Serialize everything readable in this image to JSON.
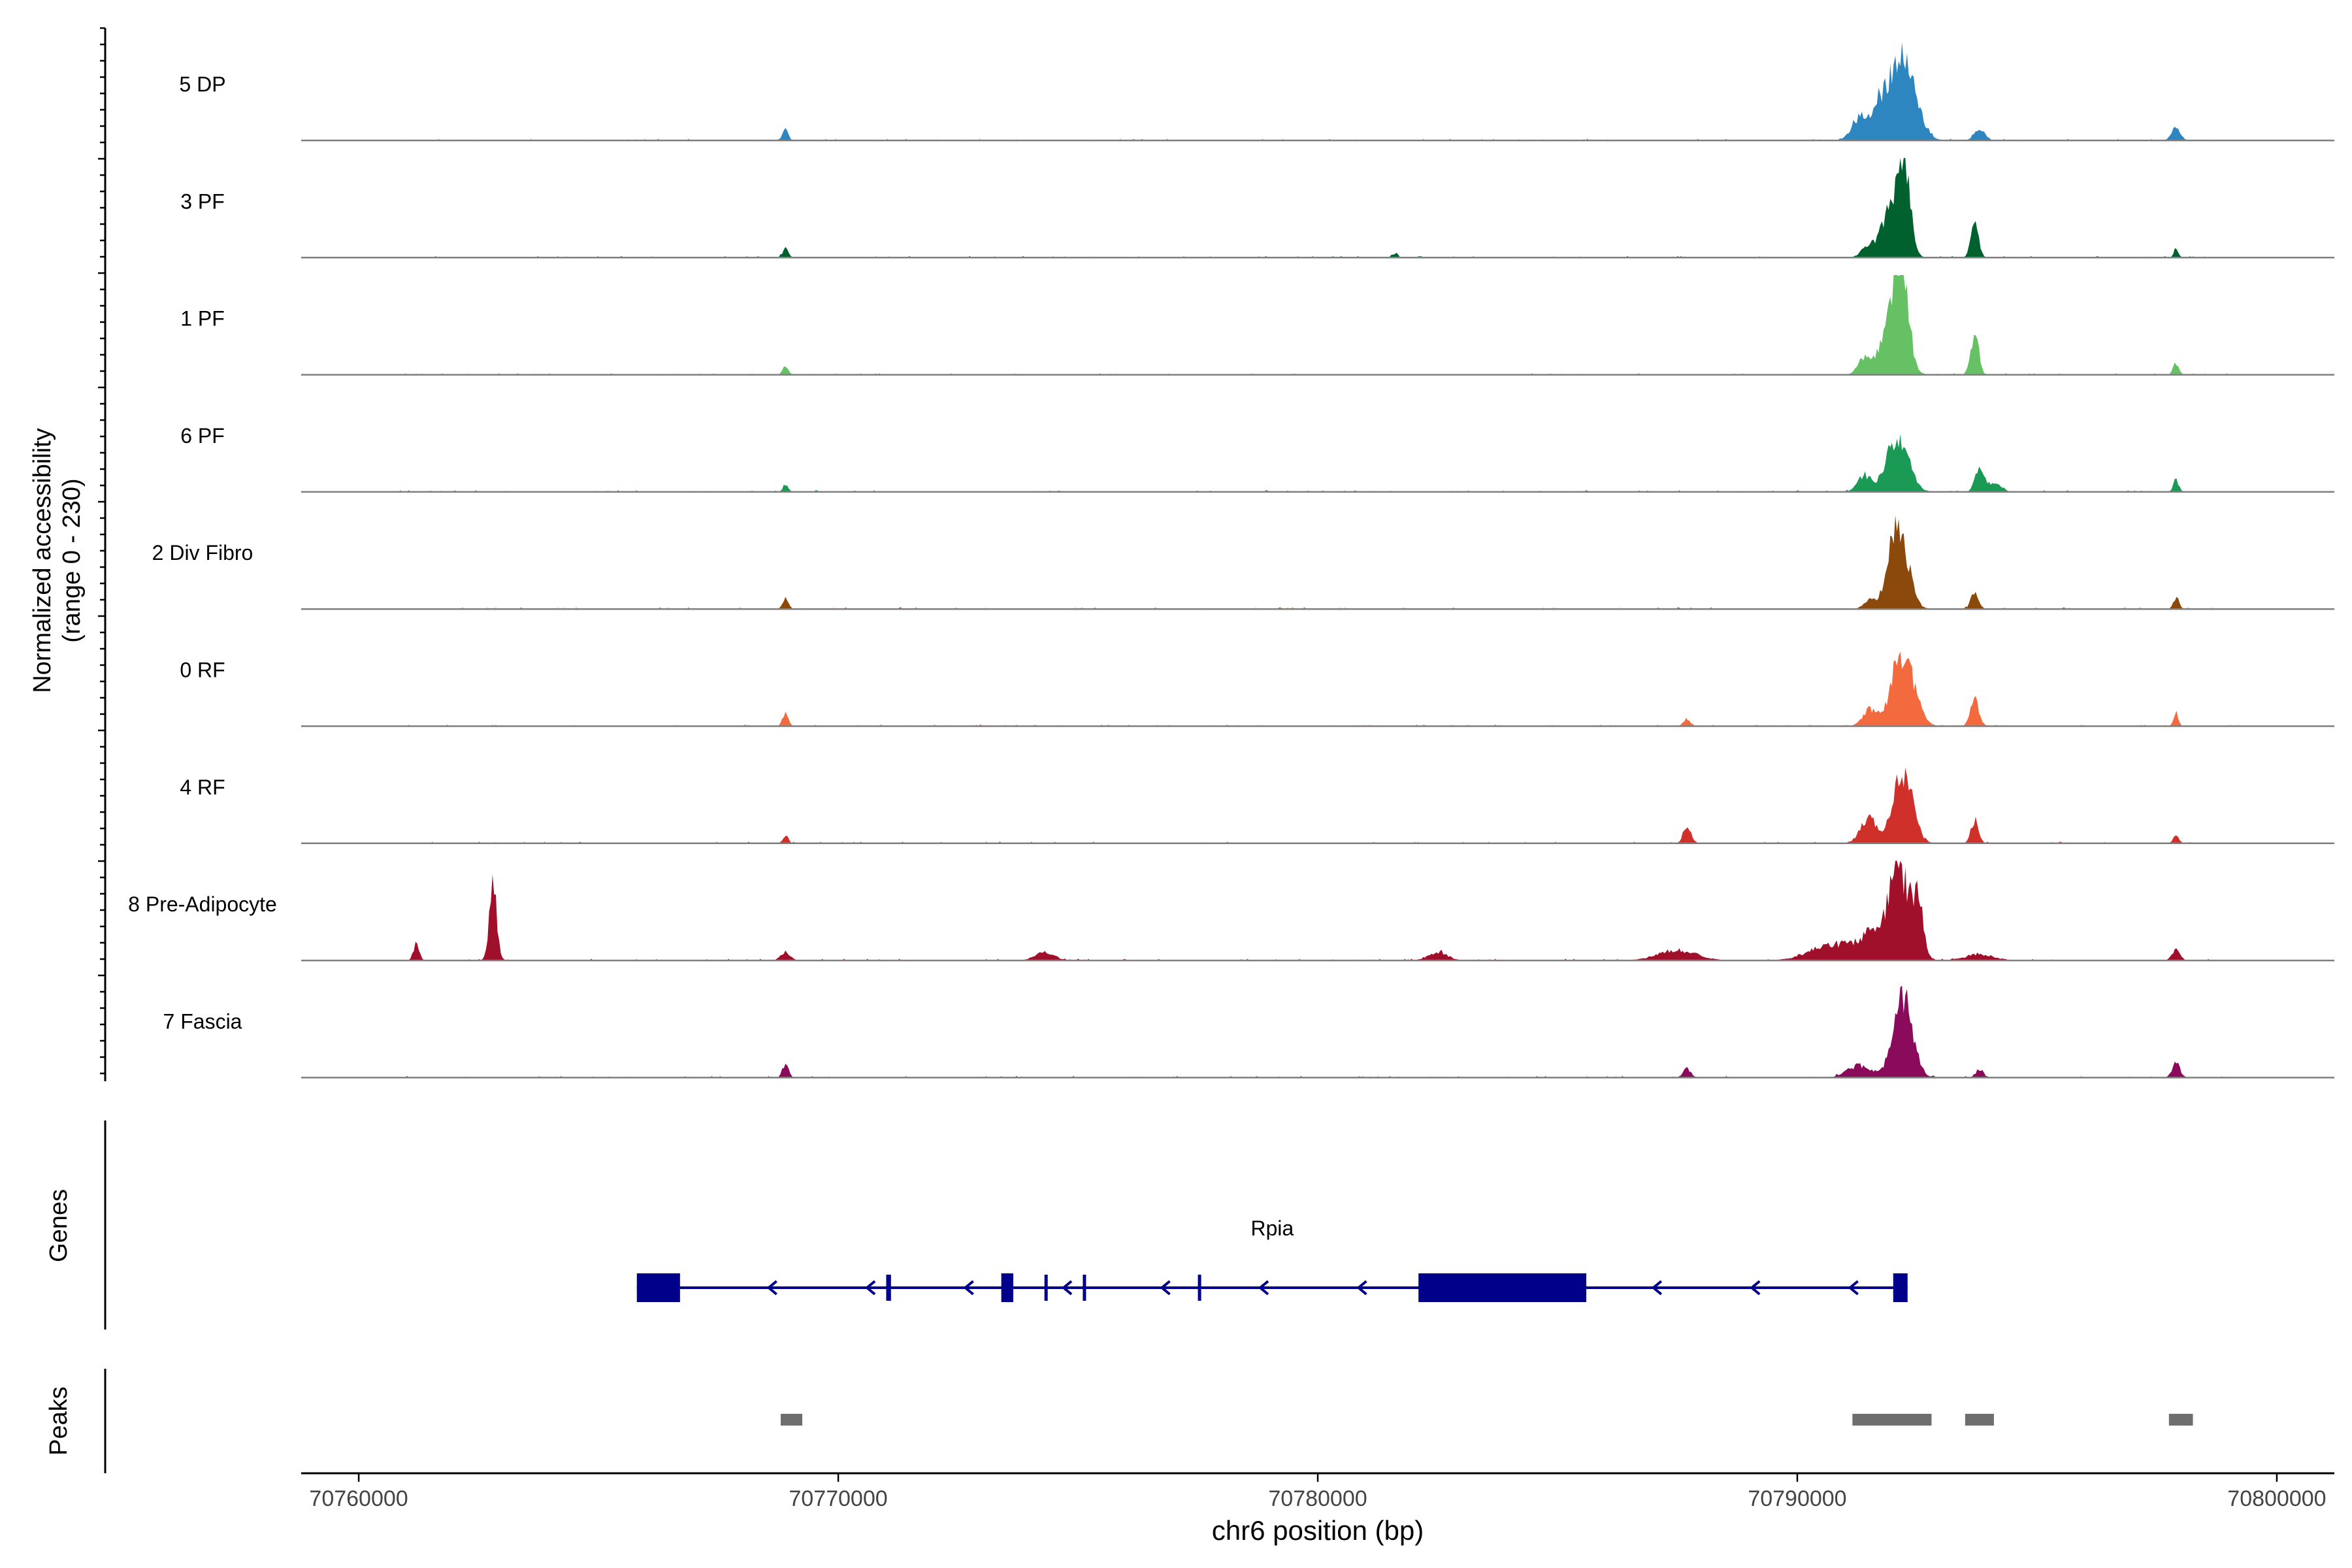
{
  "chart_data": {
    "type": "area",
    "chromosome": "chr6",
    "xlabel": "chr6 position (bp)",
    "xlim": [
      70758800,
      70801200
    ],
    "x_ticks": [
      70760000,
      70770000,
      70780000,
      70790000,
      70800000
    ],
    "x_tick_labels": [
      "70760000",
      "70770000",
      "70780000",
      "70790000",
      "70800000"
    ],
    "ylabel_line1": "Normalized accessibility",
    "ylabel_line2": "(range 0 - 230)",
    "ylim": [
      0,
      230
    ],
    "track_labels": {
      "genes": "Genes",
      "peaks": "Peaks"
    },
    "coverage_tracks": [
      {
        "name": "5 DP",
        "color": "#2E86C1",
        "peaks": [
          [
            70768900,
            30,
            55
          ],
          [
            70791300,
            55,
            170
          ],
          [
            70791700,
            70,
            160
          ],
          [
            70792200,
            220,
            260
          ],
          [
            70793800,
            30,
            110
          ],
          [
            70797900,
            32,
            90
          ]
        ]
      },
      {
        "name": "3 PF",
        "color": "#00612E",
        "peaks": [
          [
            70768900,
            22,
            60
          ],
          [
            70781600,
            10,
            60
          ],
          [
            70791500,
            30,
            150
          ],
          [
            70792000,
            140,
            200
          ],
          [
            70792250,
            190,
            120
          ],
          [
            70793700,
            85,
            80
          ],
          [
            70797900,
            22,
            50
          ]
        ]
      },
      {
        "name": "1 PF",
        "color": "#66C164",
        "peaks": [
          [
            70768900,
            20,
            60
          ],
          [
            70791400,
            40,
            130
          ],
          [
            70792000,
            160,
            220
          ],
          [
            70792200,
            190,
            120
          ],
          [
            70793700,
            105,
            80
          ],
          [
            70797900,
            28,
            60
          ]
        ]
      },
      {
        "name": "6 PF",
        "color": "#1B9A56",
        "peaks": [
          [
            70768900,
            18,
            55
          ],
          [
            70791400,
            40,
            140
          ],
          [
            70792100,
            140,
            220
          ],
          [
            70793800,
            62,
            90
          ],
          [
            70794100,
            20,
            150
          ],
          [
            70797900,
            28,
            60
          ]
        ]
      },
      {
        "name": "2 Div Fibro",
        "color": "#8B4A0C",
        "peaks": [
          [
            70768900,
            25,
            60
          ],
          [
            70791500,
            20,
            120
          ],
          [
            70792100,
            205,
            200
          ],
          [
            70793700,
            40,
            80
          ],
          [
            70797900,
            28,
            60
          ]
        ]
      },
      {
        "name": "0 RF",
        "color": "#F36A3E",
        "peaks": [
          [
            70768900,
            30,
            60
          ],
          [
            70787700,
            18,
            70
          ],
          [
            70791500,
            40,
            140
          ],
          [
            70792200,
            180,
            230
          ],
          [
            70793700,
            65,
            90
          ],
          [
            70797900,
            32,
            50
          ]
        ]
      },
      {
        "name": "4 RF",
        "color": "#D0302A",
        "peaks": [
          [
            70768900,
            18,
            60
          ],
          [
            70787700,
            42,
            80
          ],
          [
            70791500,
            60,
            180
          ],
          [
            70792200,
            175,
            200
          ],
          [
            70793700,
            55,
            80
          ],
          [
            70797900,
            20,
            60
          ]
        ]
      },
      {
        "name": "8 Pre-Adipocyte",
        "color": "#A1102B",
        "peaks": [
          [
            70761200,
            40,
            60
          ],
          [
            70762800,
            175,
            80
          ],
          [
            70768900,
            20,
            100
          ],
          [
            70774300,
            20,
            200
          ],
          [
            70782500,
            20,
            200
          ],
          [
            70787500,
            25,
            400
          ],
          [
            70790800,
            40,
            500
          ],
          [
            70791600,
            60,
            250
          ],
          [
            70792100,
            240,
            180
          ],
          [
            70792500,
            150,
            120
          ],
          [
            70793800,
            15,
            300
          ],
          [
            70797900,
            30,
            80
          ]
        ]
      },
      {
        "name": "7 Fascia",
        "color": "#8A0A5C",
        "peaks": [
          [
            70768900,
            35,
            60
          ],
          [
            70787700,
            22,
            80
          ],
          [
            70791300,
            30,
            250
          ],
          [
            70792200,
            200,
            200
          ],
          [
            70793800,
            20,
            80
          ],
          [
            70797900,
            35,
            80
          ]
        ]
      }
    ],
    "gene": {
      "name": "Rpia",
      "color": "#00008B",
      "strand": "-",
      "start": 70765800,
      "end": 70792300,
      "exons": [
        [
          70765800,
          70766700
        ],
        [
          70771000,
          70771100
        ],
        [
          70773400,
          70773650
        ],
        [
          70774300,
          70774350
        ],
        [
          70775100,
          70775150
        ],
        [
          70777500,
          70777550
        ],
        [
          70782100,
          70785600
        ],
        [
          70792000,
          70792300
        ]
      ]
    },
    "peaks_track": {
      "color": "#6E6E6E",
      "regions": [
        [
          70768800,
          70769250
        ],
        [
          70791150,
          70792800
        ],
        [
          70793500,
          70794100
        ],
        [
          70797750,
          70798250
        ]
      ]
    }
  }
}
